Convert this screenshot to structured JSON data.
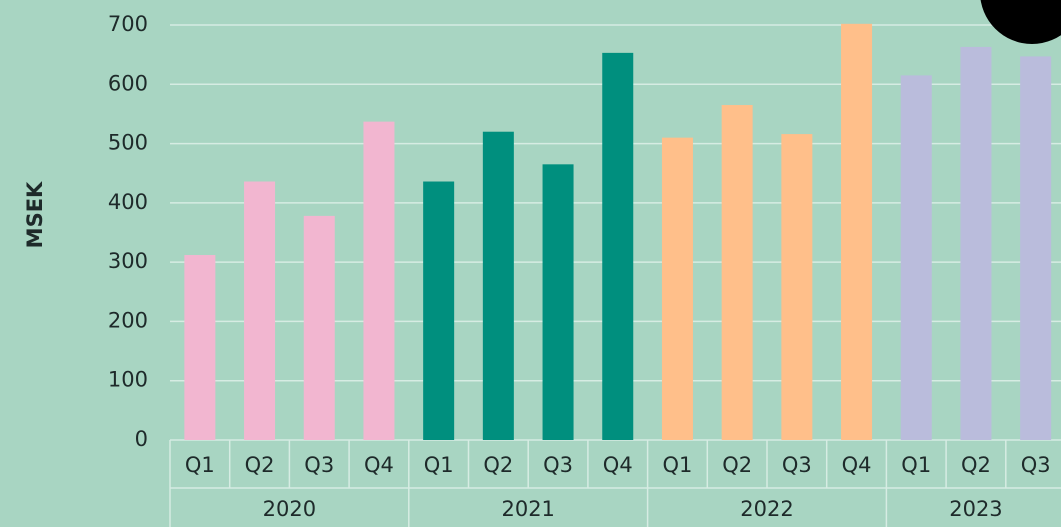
{
  "chart_data": {
    "type": "bar",
    "y_label": "MSEK",
    "ylim": [
      0,
      700
    ],
    "yticks": [
      0,
      100,
      200,
      300,
      400,
      500,
      600,
      700
    ],
    "grid": true,
    "series": [
      {
        "name": "2020",
        "color": "#f2b6d0",
        "categories": [
          "Q1",
          "Q2",
          "Q3",
          "Q4"
        ],
        "values": [
          312,
          436,
          378,
          537
        ]
      },
      {
        "name": "2021",
        "color": "#008f7e",
        "categories": [
          "Q1",
          "Q2",
          "Q3",
          "Q4"
        ],
        "values": [
          436,
          520,
          465,
          653
        ]
      },
      {
        "name": "2022",
        "color": "#ffbf8a",
        "categories": [
          "Q1",
          "Q2",
          "Q3",
          "Q4"
        ],
        "values": [
          510,
          565,
          516,
          702
        ]
      },
      {
        "name": "2023",
        "color": "#babcdc",
        "categories": [
          "Q1",
          "Q2",
          "Q3"
        ],
        "values": [
          615,
          663,
          647
        ]
      }
    ]
  }
}
